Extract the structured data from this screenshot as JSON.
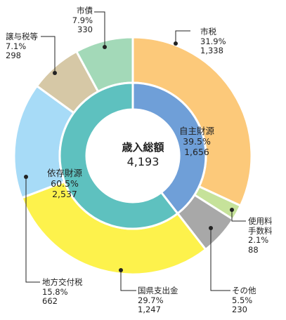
{
  "chart_data": {
    "type": "donut",
    "total_label": "歳入総額",
    "total_value": "4,193",
    "inner_ring": [
      {
        "name": "自主財源",
        "percent": "39.5%",
        "value": "1,656",
        "color": "#6f9fd8"
      },
      {
        "name": "依存財源",
        "percent": "60.5%",
        "value": "2,537",
        "color": "#5ec1bf"
      }
    ],
    "outer_ring": [
      {
        "name": "市税",
        "percent": "31.9%",
        "value": "1,338",
        "color": "#fcc97a"
      },
      {
        "name": "使用料手数料",
        "name_lines": [
          "使用料",
          "手数料"
        ],
        "percent": "2.1%",
        "value": "88",
        "color": "#c6e29a"
      },
      {
        "name": "その他",
        "percent": "5.5%",
        "value": "230",
        "color": "#a8a8a8"
      },
      {
        "name": "国県支出金",
        "percent": "29.7%",
        "value": "1,247",
        "color": "#fdf24c"
      },
      {
        "name": "地方交付税",
        "percent": "15.8%",
        "value": "662",
        "color": "#a7dbf7"
      },
      {
        "name": "譲与税等",
        "percent": "7.1%",
        "value": "298",
        "color": "#d6c8a6"
      },
      {
        "name": "市債",
        "percent": "7.9%",
        "value": "330",
        "color": "#a3d9b8"
      }
    ]
  }
}
